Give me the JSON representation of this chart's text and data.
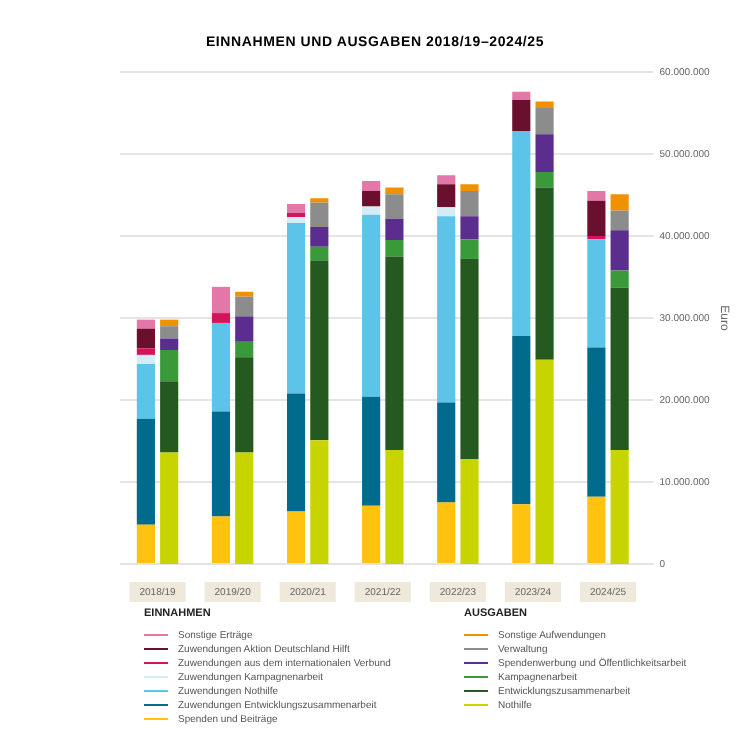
{
  "chart_data": [
    {
      "type": "bar",
      "title": "EINNAHMEN UND AUSGABEN 2018/19–2024/25",
      "ylabel": "Euro",
      "stacked": true,
      "legend_title": "EINNAHMEN",
      "categories": [
        "2018/19",
        "2019/20",
        "2020/21",
        "2021/22",
        "2022/23",
        "2023/24",
        "2024/25"
      ],
      "ylim": [
        0,
        60000000
      ],
      "yticks": [
        0,
        {
          "value": 10000000,
          "label": "10.000.000"
        },
        {
          "value": 20000000,
          "label": "20.000.000"
        },
        {
          "value": 30000000,
          "label": "30.000.000"
        },
        {
          "value": 40000000,
          "label": "40.000.000"
        },
        {
          "value": 50000000,
          "label": "50.000.000"
        },
        {
          "value": 60000000,
          "label": "60.000.000"
        }
      ],
      "grid": "y",
      "legend": "bottom",
      "series": [
        {
          "name": "Spenden und Beiträge",
          "color": "#ffc20e",
          "values": [
            4800000,
            5800000,
            6400000,
            7100000,
            7500000,
            7300000,
            8200000
          ]
        },
        {
          "name": "Zuwendungen Entwicklungszusammenarbeit",
          "color": "#006b8c",
          "values": [
            12900000,
            12800000,
            14400000,
            13300000,
            12200000,
            20500000,
            18200000
          ]
        },
        {
          "name": "Zuwendungen Nothilfe",
          "color": "#5bc4e8",
          "values": [
            6700000,
            10800000,
            20800000,
            22200000,
            22700000,
            25000000,
            13200000
          ]
        },
        {
          "name": "Zuwendungen Kampagnenarbeit",
          "color": "#d3ecf6",
          "values": [
            1100000,
            0,
            700000,
            1000000,
            1100000,
            0,
            0
          ]
        },
        {
          "name": "Zuwendungen aus dem internationalen Verbund",
          "color": "#d4145a",
          "values": [
            800000,
            1200000,
            500000,
            0,
            0,
            0,
            400000
          ]
        },
        {
          "name": "Zuwendungen Aktion Deutschland Hilft",
          "color": "#6b0f2f",
          "values": [
            2400000,
            0,
            0,
            1900000,
            2800000,
            3800000,
            4300000
          ]
        },
        {
          "name": "Sonstige Erträge",
          "color": "#e377a8",
          "values": [
            1100000,
            3200000,
            1100000,
            1200000,
            1100000,
            1000000,
            1200000
          ]
        }
      ]
    },
    {
      "type": "bar",
      "stacked": true,
      "legend_title": "AUSGABEN",
      "tick_labels": false,
      "categories": [
        "2018/19",
        "2019/20",
        "2020/21",
        "2021/22",
        "2022/23",
        "2023/24",
        "2024/25"
      ],
      "ylim": [
        0,
        60000000
      ],
      "yticks": [
        0,
        {
          "value": 10000000,
          "label": "10.000.000"
        },
        {
          "value": 20000000,
          "label": "20.000.000"
        },
        {
          "value": 30000000,
          "label": "30.000.000"
        },
        {
          "value": 40000000,
          "label": "40.000.000"
        },
        {
          "value": 50000000,
          "label": "50.000.000"
        },
        {
          "value": 60000000,
          "label": "60.000.000"
        }
      ],
      "legend": "bottom",
      "series": [
        {
          "name": "Nothilfe",
          "color": "#c8d400",
          "values": [
            13600000,
            13600000,
            15100000,
            13900000,
            12800000,
            24900000,
            13900000
          ]
        },
        {
          "name": "Entwicklungszusammenarbeit",
          "color": "#24591f",
          "values": [
            8700000,
            11600000,
            21900000,
            23600000,
            24400000,
            21000000,
            19800000
          ]
        },
        {
          "name": "Kampagnenarbeit",
          "color": "#3a9a3a",
          "values": [
            3800000,
            1900000,
            1700000,
            2000000,
            2400000,
            1900000,
            2100000
          ]
        },
        {
          "name": "Spendenwerbung und Öffentlichkeitsarbeit",
          "color": "#5b2d8e",
          "values": [
            1400000,
            3100000,
            2400000,
            2600000,
            2800000,
            4600000,
            4900000
          ]
        },
        {
          "name": "Verwaltung",
          "color": "#8c8c8c",
          "values": [
            1500000,
            2400000,
            3000000,
            3000000,
            3100000,
            3200000,
            2400000
          ]
        },
        {
          "name": "Sonstige Aufwendungen",
          "color": "#f29100",
          "values": [
            800000,
            600000,
            500000,
            800000,
            800000,
            800000,
            2000000
          ]
        }
      ]
    }
  ]
}
